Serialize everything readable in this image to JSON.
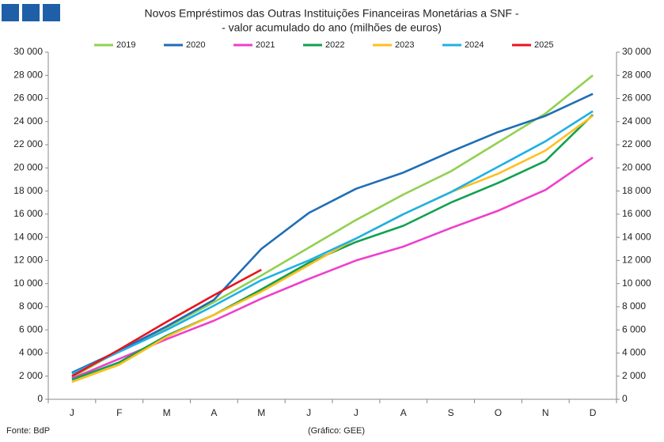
{
  "chart_data": {
    "type": "line",
    "title": "Novos Empréstimos das Outras Instituições Financeiras Monetárias a SNF -",
    "subtitle": "- valor acumulado do ano (milhões de euros)",
    "source": "Fonte: BdP",
    "credit": "(Gráfico: GEE)",
    "categories": [
      "J",
      "F",
      "M",
      "A",
      "M",
      "J",
      "J",
      "A",
      "S",
      "O",
      "N",
      "D"
    ],
    "series": [
      {
        "name": "2019",
        "color": "#92d050",
        "values": [
          1900,
          4200,
          6200,
          8400,
          10700,
          13100,
          15500,
          17700,
          19700,
          22200,
          24700,
          28000
        ]
      },
      {
        "name": "2020",
        "color": "#1f6eb5",
        "values": [
          2300,
          4200,
          6300,
          8600,
          13000,
          16100,
          18200,
          19600,
          21400,
          23100,
          24500,
          26400
        ]
      },
      {
        "name": "2021",
        "color": "#ee3fcc",
        "values": [
          1800,
          3500,
          5200,
          6800,
          8700,
          10400,
          12000,
          13200,
          14800,
          16300,
          18100,
          20900
        ]
      },
      {
        "name": "2022",
        "color": "#12a050",
        "values": [
          1700,
          3200,
          5500,
          7300,
          9500,
          11800,
          13600,
          15000,
          17000,
          18700,
          20600,
          24600
        ]
      },
      {
        "name": "2023",
        "color": "#ffbf1f",
        "values": [
          1500,
          3000,
          5400,
          7300,
          9300,
          11600,
          13900,
          16000,
          17900,
          19500,
          21500,
          24500
        ]
      },
      {
        "name": "2024",
        "color": "#1fb0e6",
        "values": [
          2200,
          4100,
          6000,
          8100,
          10300,
          12000,
          13900,
          16000,
          17900,
          20100,
          22300,
          24900
        ]
      },
      {
        "name": "2025",
        "color": "#e8141e",
        "values": [
          2000,
          4300,
          6700,
          9000,
          11200,
          null,
          null,
          null,
          null,
          null,
          null,
          null
        ]
      }
    ],
    "ylim": [
      0,
      30000
    ],
    "yticks": [
      {
        "value": 0,
        "label": "0"
      },
      {
        "value": 2000,
        "label": "2 000"
      },
      {
        "value": 4000,
        "label": "4 000"
      },
      {
        "value": 6000,
        "label": "6 000"
      },
      {
        "value": 8000,
        "label": "8 000"
      },
      {
        "value": 10000,
        "label": "10 000"
      },
      {
        "value": 12000,
        "label": "12 000"
      },
      {
        "value": 14000,
        "label": "14 000"
      },
      {
        "value": 16000,
        "label": "16 000"
      },
      {
        "value": 18000,
        "label": "18 000"
      },
      {
        "value": 20000,
        "label": "20 000"
      },
      {
        "value": 22000,
        "label": "22 000"
      },
      {
        "value": 24000,
        "label": "24 000"
      },
      {
        "value": 26000,
        "label": "26 000"
      },
      {
        "value": 28000,
        "label": "28 000"
      },
      {
        "value": 30000,
        "label": "30 000"
      }
    ],
    "y2lim": [
      0,
      30000
    ],
    "y2ticks": [
      {
        "value": 0,
        "label": "0"
      },
      {
        "value": 2000,
        "label": "2 000"
      },
      {
        "value": 4000,
        "label": "4 000"
      },
      {
        "value": 6000,
        "label": "6 000"
      },
      {
        "value": 8000,
        "label": "8 000"
      },
      {
        "value": 10000,
        "label": "10 000"
      },
      {
        "value": 12000,
        "label": "12 000"
      },
      {
        "value": 14000,
        "label": "14 000"
      },
      {
        "value": 16000,
        "label": "16 000"
      },
      {
        "value": 18000,
        "label": "18 000"
      },
      {
        "value": 20000,
        "label": "20 000"
      },
      {
        "value": 22000,
        "label": "22 000"
      },
      {
        "value": 24000,
        "label": "24 000"
      },
      {
        "value": 26000,
        "label": "26 000"
      },
      {
        "value": 28000,
        "label": "28 000"
      },
      {
        "value": 30000,
        "label": "30 000"
      }
    ],
    "legend": "top",
    "grid": false
  }
}
